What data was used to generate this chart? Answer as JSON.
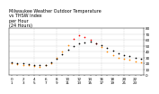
{
  "title": "Milwaukee Weather Outdoor Temperature\nvs THSW Index\nper Hour\n(24 Hours)",
  "hours": [
    0,
    1,
    2,
    3,
    4,
    5,
    6,
    7,
    8,
    9,
    10,
    11,
    12,
    13,
    14,
    15,
    16,
    17,
    18,
    19,
    20,
    21,
    22,
    23
  ],
  "temp": [
    22,
    21,
    20,
    19,
    18,
    17,
    18,
    22,
    28,
    36,
    44,
    50,
    54,
    56,
    57,
    55,
    52,
    47,
    42,
    38,
    35,
    33,
    30,
    28
  ],
  "thsw": [
    20,
    19,
    18,
    17,
    16,
    15,
    17,
    21,
    30,
    40,
    52,
    62,
    68,
    65,
    60,
    55,
    48,
    40,
    34,
    30,
    28,
    26,
    24,
    22
  ],
  "temp_color": "#000000",
  "thsw_color_low": "#ff8800",
  "thsw_color_high": "#ff0000",
  "thsw_high_threshold": 55,
  "background": "#ffffff",
  "grid_color": "#bbbbbb",
  "ylim_min": 0,
  "ylim_max": 80,
  "xlim_min": -0.5,
  "xlim_max": 23.5,
  "vlines": [
    4,
    8,
    12,
    16,
    20
  ],
  "yticks": [
    0,
    10,
    20,
    30,
    40,
    50,
    60,
    70,
    80
  ],
  "title_fontsize": 3.5,
  "tick_fontsize": 3.0,
  "dot_size_thsw": 1.5,
  "dot_size_temp": 1.5
}
